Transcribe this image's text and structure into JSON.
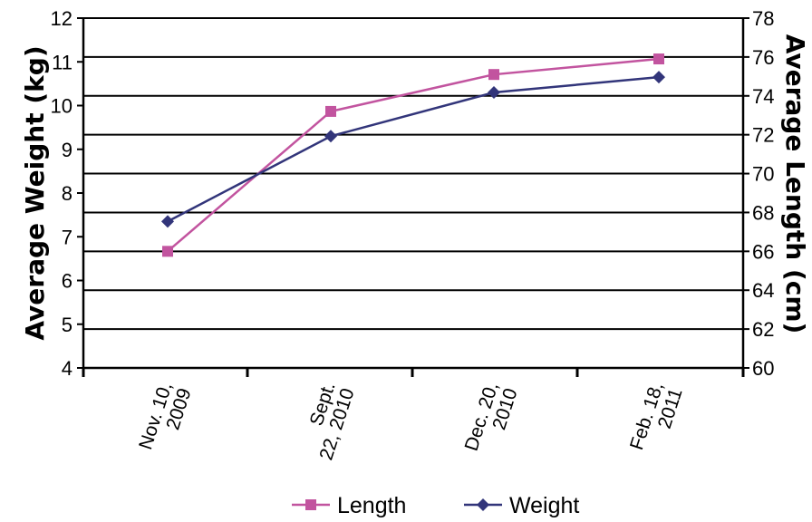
{
  "chart_data": {
    "type": "line",
    "categories": [
      [
        "Nov. 10,",
        "2009"
      ],
      [
        "Sept.",
        "22, 2010"
      ],
      [
        "Dec. 20,",
        "2010"
      ],
      [
        "Feb. 18,",
        "2011"
      ]
    ],
    "series": [
      {
        "name": "Length",
        "axis": "right",
        "color": "#c2549f",
        "marker": "square",
        "values": [
          66,
          73.2,
          75.1,
          75.9
        ]
      },
      {
        "name": "Weight",
        "axis": "left",
        "color": "#32357a",
        "marker": "diamond",
        "values": [
          7.35,
          9.3,
          10.3,
          10.65
        ]
      }
    ],
    "y_left": {
      "label": "Average Weight (kg)",
      "range": [
        4,
        12
      ],
      "ticks": [
        4,
        5,
        6,
        7,
        8,
        9,
        10,
        11,
        12
      ]
    },
    "y_right": {
      "label": "Average Length (cm)",
      "range": [
        60,
        78
      ],
      "ticks": [
        60,
        62,
        64,
        66,
        68,
        70,
        72,
        74,
        76,
        78
      ]
    },
    "grid": "horizontal",
    "legend_position": "bottom",
    "title": "",
    "xlabel": ""
  }
}
